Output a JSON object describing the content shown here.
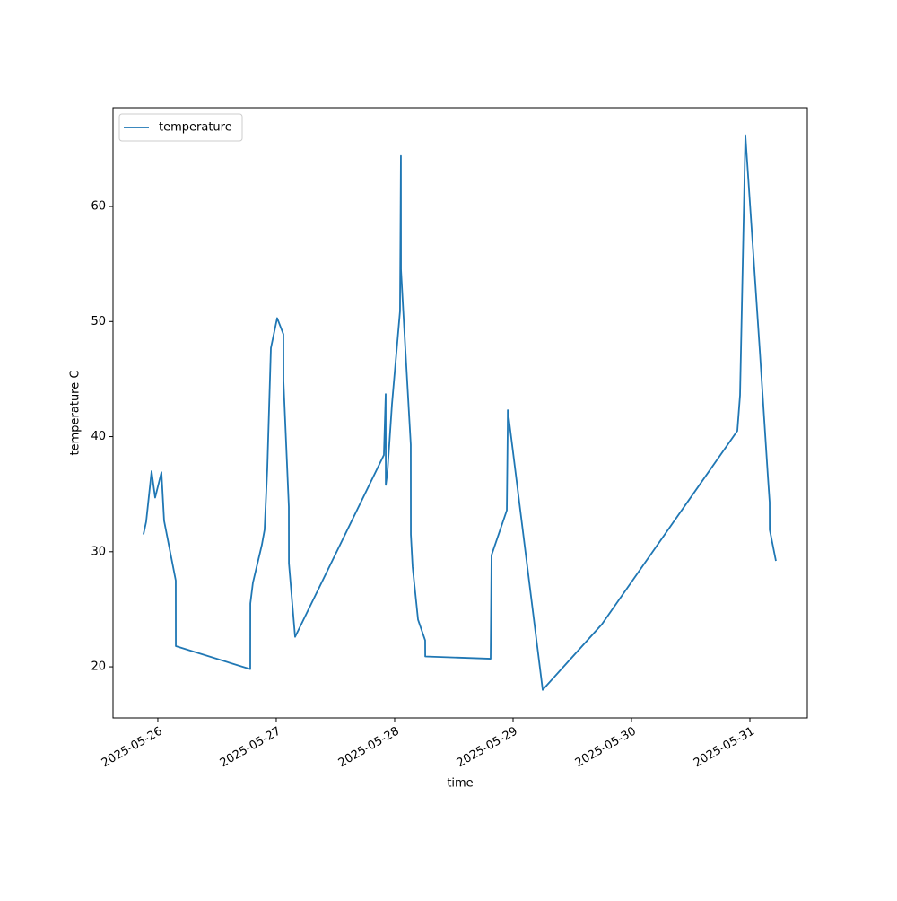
{
  "chart_data": {
    "type": "line",
    "x_label": "time",
    "y_label": "temperature C",
    "x": [
      "2025-05-25T21:05",
      "2025-05-25T21:38",
      "2025-05-25T22:44",
      "2025-05-25T23:27",
      "2025-05-26T00:44",
      "2025-05-26T01:16",
      "2025-05-26T03:38",
      "2025-05-26T03:39",
      "2025-05-26T18:44",
      "2025-05-26T18:45",
      "2025-05-26T19:16",
      "2025-05-26T21:05",
      "2025-05-26T21:38",
      "2025-05-26T22:11",
      "2025-05-26T22:55",
      "2025-05-27T00:11",
      "2025-05-27T01:27",
      "2025-05-27T01:28",
      "2025-05-27T02:33",
      "2025-05-27T02:34",
      "2025-05-27T03:49",
      "2025-05-27T21:49",
      "2025-05-27T22:11",
      "2025-05-27T22:12",
      "2025-05-27T22:33",
      "2025-05-27T23:27",
      "2025-05-28T01:05",
      "2025-05-28T01:16",
      "2025-05-28T01:17",
      "2025-05-28T02:11",
      "2025-05-28T03:16",
      "2025-05-28T03:17",
      "2025-05-28T03:38",
      "2025-05-28T04:44",
      "2025-05-28T06:11",
      "2025-05-28T06:12",
      "2025-05-28T19:27",
      "2025-05-28T19:38",
      "2025-05-28T22:44",
      "2025-05-28T22:55",
      "2025-05-28T22:56",
      "2025-05-29T06:00",
      "2025-05-29T18:00",
      "2025-05-30T21:27",
      "2025-05-30T22:00",
      "2025-05-30T23:05",
      "2025-05-31T02:00",
      "2025-05-31T03:38",
      "2025-05-31T04:00",
      "2025-05-31T04:01",
      "2025-05-31T05:16"
    ],
    "series": [
      {
        "name": "temperature",
        "color": "#1f77b4",
        "values": [
          31.5,
          32.6,
          37.0,
          34.7,
          36.9,
          32.7,
          27.5,
          21.8,
          19.8,
          25.5,
          27.3,
          30.6,
          31.9,
          37.2,
          47.7,
          50.3,
          48.9,
          44.8,
          33.9,
          29.0,
          22.6,
          38.4,
          43.7,
          35.8,
          37.0,
          42.8,
          50.9,
          64.4,
          54.5,
          47.5,
          39.3,
          31.5,
          28.7,
          24.1,
          22.3,
          20.9,
          20.7,
          29.7,
          33.6,
          40.8,
          42.3,
          18.0,
          23.7,
          40.5,
          43.6,
          66.2,
          47.5,
          36.6,
          34.3,
          31.9,
          29.2
        ]
      }
    ],
    "xlim": [
      "2025-05-25T14:55",
      "2025-05-31T11:38"
    ],
    "xticks": [
      "2025-05-26",
      "2025-05-27",
      "2025-05-28",
      "2025-05-29",
      "2025-05-30",
      "2025-05-31"
    ],
    "ylim": [
      15.56,
      68.58
    ],
    "yticks": [
      20,
      30,
      40,
      50,
      60
    ],
    "legend": "upper left"
  }
}
